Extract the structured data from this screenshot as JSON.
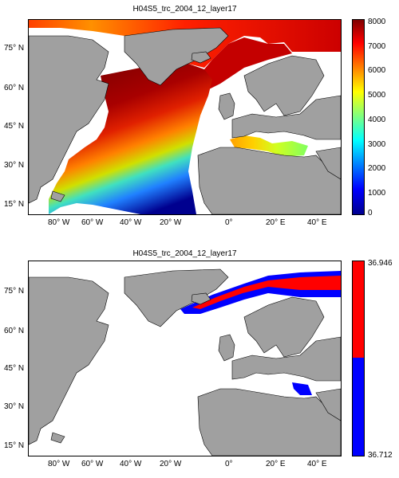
{
  "panels": [
    {
      "title": "H04S5_trc_2004_12_layer17",
      "lat_labels": [
        "75° N",
        "60° N",
        "45° N",
        "30° N",
        "15° N"
      ],
      "lon_labels": [
        "80° W",
        "60° W",
        "40° W",
        "20° W",
        "0°",
        "20° E",
        "40° E"
      ],
      "colorbar": {
        "ticks": [
          "8000",
          "7000",
          "6000",
          "5000",
          "4000",
          "3000",
          "2000",
          "1000",
          "0"
        ],
        "colormap": "jet",
        "range": [
          0,
          8000
        ]
      }
    },
    {
      "title": "H04S5_trc_2004_12_layer17",
      "lat_labels": [
        "75° N",
        "60° N",
        "45° N",
        "30° N",
        "15° N"
      ],
      "lon_labels": [
        "80° W",
        "60° W",
        "40° W",
        "20° W",
        "0°",
        "20° E",
        "40° E"
      ],
      "colorbar": {
        "ticks": [
          "36.946",
          "36.712"
        ],
        "colors": [
          "#ff0000",
          "#0000ff"
        ],
        "range": [
          36.712,
          36.946
        ]
      }
    }
  ],
  "colors": {
    "land": "#a0a0a0",
    "ocean_nodata": "#ffffff",
    "high": "#800000",
    "low": "#00008f",
    "red": "#ff0000",
    "blue": "#0000ff"
  }
}
